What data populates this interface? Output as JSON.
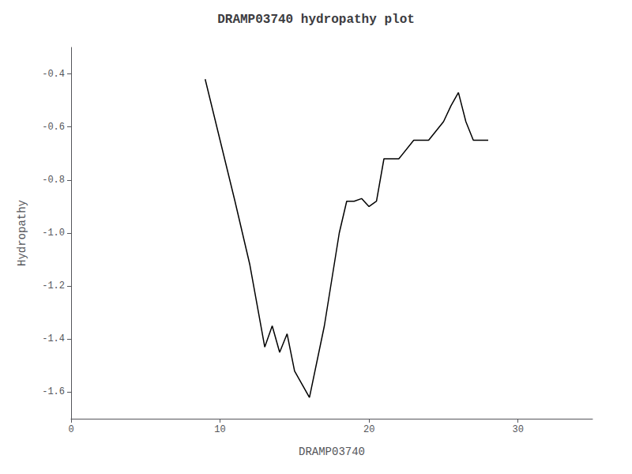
{
  "chart_data": {
    "type": "line",
    "title": "DRAMP03740 hydropathy plot",
    "xlabel": "DRAMP03740",
    "ylabel": "Hydropathy",
    "x": [
      9,
      10,
      11,
      12,
      13,
      13.5,
      14,
      14.5,
      15,
      16,
      17,
      18,
      18.5,
      19,
      19.5,
      20,
      20.5,
      21,
      22,
      23,
      24,
      25,
      25.5,
      26,
      26.5,
      27,
      28
    ],
    "values": [
      -0.42,
      -0.65,
      -0.88,
      -1.12,
      -1.43,
      -1.35,
      -1.45,
      -1.38,
      -1.52,
      -1.62,
      -1.35,
      -1.0,
      -0.88,
      -0.88,
      -0.87,
      -0.9,
      -0.88,
      -0.72,
      -0.72,
      -0.65,
      -0.65,
      -0.58,
      -0.52,
      -0.47,
      -0.58,
      -0.65,
      -0.65
    ],
    "color": "black",
    "xlim": [
      0,
      35
    ],
    "ylim": [
      -1.7,
      -0.3
    ],
    "xticks": [
      0,
      10,
      20,
      30
    ],
    "yticks": [
      -1.6,
      -1.4,
      -1.2,
      {
        "value": -1.0,
        "label": "-1.0"
      },
      -0.8,
      -0.6,
      -0.4
    ],
    "grid": false
  }
}
